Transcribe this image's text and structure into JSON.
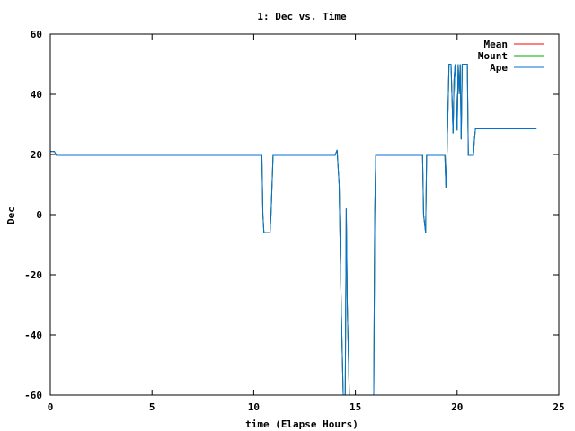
{
  "chart_data": {
    "type": "line",
    "title": "1: Dec vs. Time",
    "xlabel": "time (Elapse Hours)",
    "ylabel": "Dec",
    "xlim": [
      0,
      25
    ],
    "ylim": [
      -60,
      60
    ],
    "xticks": [
      0,
      5,
      10,
      15,
      20,
      25
    ],
    "yticks": [
      -60,
      -40,
      -20,
      0,
      20,
      40,
      60
    ],
    "grid": false,
    "legend": "top-right",
    "series": [
      {
        "name": "Mean",
        "color": "#ff0000",
        "points": [
          [
            0,
            21
          ],
          [
            0.2,
            21
          ],
          [
            0.3,
            19.7
          ],
          [
            10.4,
            19.7
          ],
          [
            10.45,
            0
          ],
          [
            10.5,
            -6
          ],
          [
            10.8,
            -6
          ],
          [
            10.85,
            0
          ],
          [
            10.95,
            19.7
          ],
          [
            14.0,
            19.7
          ],
          [
            14.1,
            21.5
          ],
          [
            14.2,
            10
          ],
          [
            14.3,
            -30
          ],
          [
            14.4,
            -60
          ],
          [
            14.5,
            -60
          ],
          [
            14.55,
            2
          ],
          [
            14.6,
            -30
          ],
          [
            14.7,
            -60
          ],
          [
            15.9,
            -60
          ],
          [
            15.95,
            0
          ],
          [
            16.0,
            19.7
          ],
          [
            18.3,
            19.7
          ],
          [
            18.35,
            0
          ],
          [
            18.45,
            -6
          ],
          [
            18.5,
            19.7
          ],
          [
            19.4,
            19.7
          ],
          [
            19.45,
            9
          ],
          [
            19.5,
            19.7
          ],
          [
            19.6,
            50
          ],
          [
            19.7,
            50
          ],
          [
            19.8,
            27
          ],
          [
            19.85,
            45
          ],
          [
            19.9,
            50
          ],
          [
            20.0,
            28
          ],
          [
            20.05,
            50
          ],
          [
            20.1,
            40
          ],
          [
            20.15,
            50
          ],
          [
            20.2,
            25
          ],
          [
            20.25,
            50
          ],
          [
            20.5,
            50
          ],
          [
            20.55,
            19.7
          ],
          [
            20.8,
            19.7
          ],
          [
            20.85,
            25
          ],
          [
            20.9,
            28.5
          ],
          [
            23.9,
            28.5
          ]
        ]
      },
      {
        "name": "Mount",
        "color": "#00aa00",
        "points": [
          [
            0,
            21
          ],
          [
            0.2,
            21
          ],
          [
            0.3,
            19.7
          ],
          [
            10.4,
            19.7
          ],
          [
            10.45,
            0
          ],
          [
            10.5,
            -6
          ],
          [
            10.8,
            -6
          ],
          [
            10.85,
            0
          ],
          [
            10.95,
            19.7
          ],
          [
            14.0,
            19.7
          ],
          [
            14.1,
            21.5
          ],
          [
            14.2,
            10
          ],
          [
            14.3,
            -30
          ],
          [
            14.4,
            -60
          ],
          [
            14.5,
            -60
          ],
          [
            14.55,
            2
          ],
          [
            14.6,
            -30
          ],
          [
            14.7,
            -60
          ],
          [
            15.9,
            -60
          ],
          [
            15.95,
            0
          ],
          [
            16.0,
            19.7
          ],
          [
            18.3,
            19.7
          ],
          [
            18.35,
            0
          ],
          [
            18.45,
            -6
          ],
          [
            18.5,
            19.7
          ],
          [
            19.4,
            19.7
          ],
          [
            19.45,
            9
          ],
          [
            19.5,
            19.7
          ],
          [
            19.6,
            50
          ],
          [
            19.7,
            50
          ],
          [
            19.8,
            27
          ],
          [
            19.85,
            45
          ],
          [
            19.9,
            50
          ],
          [
            20.0,
            28
          ],
          [
            20.05,
            50
          ],
          [
            20.1,
            40
          ],
          [
            20.15,
            50
          ],
          [
            20.2,
            25
          ],
          [
            20.25,
            50
          ],
          [
            20.5,
            50
          ],
          [
            20.55,
            19.7
          ],
          [
            20.8,
            19.7
          ],
          [
            20.85,
            25
          ],
          [
            20.9,
            28.5
          ],
          [
            23.9,
            28.5
          ]
        ]
      },
      {
        "name": "Ape",
        "color": "#0072d8",
        "points": [
          [
            0,
            21
          ],
          [
            0.2,
            21
          ],
          [
            0.3,
            19.7
          ],
          [
            10.4,
            19.7
          ],
          [
            10.45,
            0
          ],
          [
            10.5,
            -6
          ],
          [
            10.8,
            -6
          ],
          [
            10.85,
            0
          ],
          [
            10.95,
            19.7
          ],
          [
            14.0,
            19.7
          ],
          [
            14.1,
            21.5
          ],
          [
            14.2,
            10
          ],
          [
            14.3,
            -30
          ],
          [
            14.4,
            -60
          ],
          [
            14.5,
            -60
          ],
          [
            14.55,
            2
          ],
          [
            14.6,
            -30
          ],
          [
            14.7,
            -60
          ],
          [
            15.9,
            -60
          ],
          [
            15.95,
            0
          ],
          [
            16.0,
            19.7
          ],
          [
            18.3,
            19.7
          ],
          [
            18.35,
            0
          ],
          [
            18.45,
            -6
          ],
          [
            18.5,
            19.7
          ],
          [
            19.4,
            19.7
          ],
          [
            19.45,
            9
          ],
          [
            19.5,
            19.7
          ],
          [
            19.6,
            50
          ],
          [
            19.7,
            50
          ],
          [
            19.8,
            27
          ],
          [
            19.85,
            45
          ],
          [
            19.9,
            50
          ],
          [
            20.0,
            28
          ],
          [
            20.05,
            50
          ],
          [
            20.1,
            40
          ],
          [
            20.15,
            50
          ],
          [
            20.2,
            25
          ],
          [
            20.25,
            50
          ],
          [
            20.5,
            50
          ],
          [
            20.55,
            19.7
          ],
          [
            20.8,
            19.7
          ],
          [
            20.85,
            25
          ],
          [
            20.9,
            28.5
          ],
          [
            23.9,
            28.5
          ]
        ]
      }
    ]
  }
}
